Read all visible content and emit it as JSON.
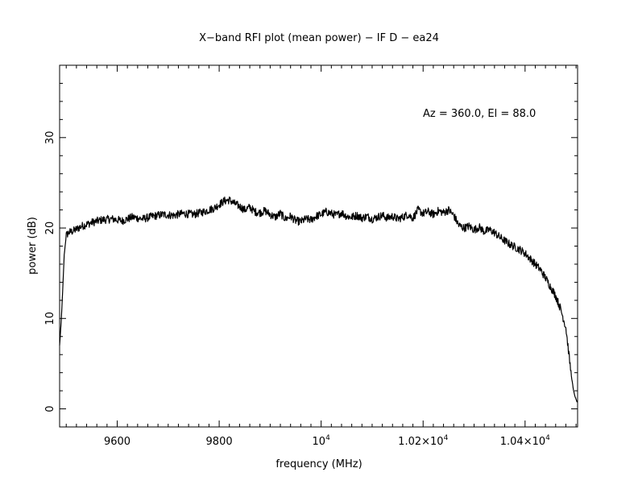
{
  "chart_data": {
    "type": "line",
    "title": "X−band RFI plot (mean power) − IF D − ea24",
    "annotation": "Az = 360.0, El = 88.0",
    "xlabel": "frequency (MHz)",
    "ylabel": "power (dB)",
    "xlim": [
      9487,
      10503
    ],
    "ylim": [
      -2,
      38
    ],
    "x_ticks": [
      {
        "value": 9600,
        "base": "9600",
        "mant": "",
        "exp": "",
        "suffix": ""
      },
      {
        "value": 9800,
        "base": "9800",
        "mant": "",
        "exp": "",
        "suffix": ""
      },
      {
        "value": 10000,
        "base": "",
        "mant": "",
        "exp": "4",
        "suffix": "10"
      },
      {
        "value": 10200,
        "base": "",
        "mant": "1.02×10",
        "exp": "4",
        "suffix": ""
      },
      {
        "value": 10400,
        "base": "",
        "mant": "1.04×10",
        "exp": "4",
        "suffix": ""
      }
    ],
    "y_ticks": [
      0,
      10,
      20,
      30
    ],
    "series": [
      {
        "line_color": "#000000",
        "x": [
          9487,
          9490,
          9493,
          9496,
          9500,
          9505,
          9515,
          9530,
          9550,
          9570,
          9590,
          9610,
          9630,
          9650,
          9670,
          9690,
          9710,
          9730,
          9750,
          9770,
          9790,
          9800,
          9810,
          9820,
          9830,
          9840,
          9850,
          9860,
          9870,
          9880,
          9890,
          9900,
          9910,
          9920,
          9930,
          9940,
          9950,
          9960,
          9970,
          9980,
          9990,
          10000,
          10010,
          10020,
          10030,
          10040,
          10050,
          10060,
          10070,
          10080,
          10090,
          10100,
          10110,
          10120,
          10130,
          10140,
          10150,
          10160,
          10170,
          10180,
          10190,
          10200,
          10210,
          10220,
          10230,
          10240,
          10250,
          10260,
          10270,
          10280,
          10290,
          10300,
          10310,
          10320,
          10330,
          10340,
          10350,
          10360,
          10370,
          10380,
          10390,
          10400,
          10410,
          10420,
          10430,
          10440,
          10450,
          10460,
          10470,
          10480,
          10485,
          10490,
          10495,
          10500,
          10503
        ],
        "y": [
          7,
          9.5,
          13,
          17,
          19.2,
          19.5,
          19.7,
          20.2,
          20.6,
          20.9,
          21.0,
          20.8,
          21.2,
          21.0,
          21.3,
          21.5,
          21.4,
          21.6,
          21.5,
          21.8,
          22.2,
          22.6,
          23.0,
          23.1,
          22.7,
          22.4,
          22.0,
          22.3,
          21.8,
          21.7,
          21.9,
          21.5,
          21.2,
          21.6,
          21.0,
          21.3,
          20.8,
          20.7,
          21.0,
          20.9,
          21.3,
          21.5,
          21.8,
          21.6,
          21.4,
          21.7,
          21.3,
          21.2,
          21.4,
          21.1,
          21.3,
          21.0,
          21.2,
          21.4,
          21.1,
          21.3,
          21.0,
          21.2,
          21.5,
          21.1,
          22.0,
          21.6,
          21.8,
          21.5,
          21.9,
          21.7,
          22.0,
          21.4,
          20.3,
          20.0,
          20.2,
          19.8,
          20.1,
          19.6,
          19.8,
          19.5,
          19.0,
          18.6,
          18.2,
          17.9,
          17.6,
          17.2,
          16.6,
          16.0,
          15.4,
          14.5,
          13.5,
          12.5,
          11.0,
          9.0,
          6.5,
          4.0,
          2.0,
          1.0,
          0.7
        ]
      }
    ]
  }
}
